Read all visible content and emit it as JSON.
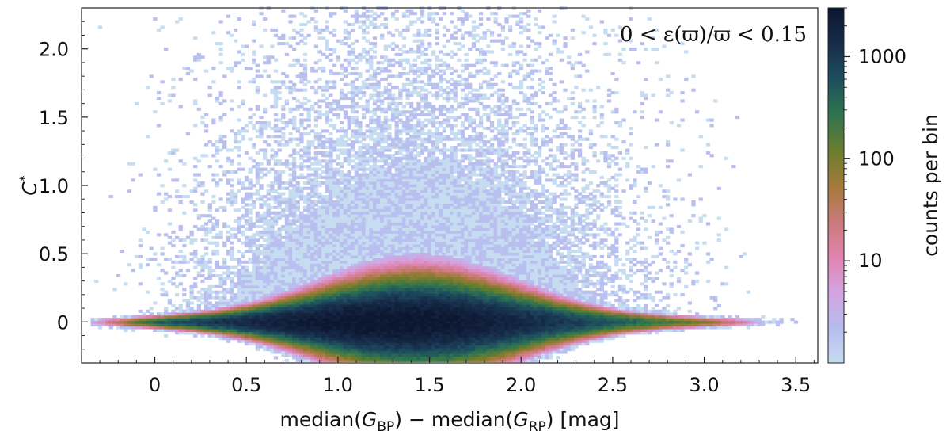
{
  "chart_data": {
    "type": "heatmap",
    "subtype": "2d-histogram",
    "xlabel": "median(G_BP) − median(G_RP)  [mag]",
    "xlabel_parts": {
      "pre": "median(",
      "g1": "G",
      "sub1": "BP",
      "mid": ") − median(",
      "g2": "G",
      "sub2": "RP",
      "post": ")  [mag]"
    },
    "ylabel": "C*",
    "ylabel_parts": {
      "base": "C",
      "sup": "*"
    },
    "xlim": [
      -0.4,
      3.62
    ],
    "ylim": [
      -0.3,
      2.3
    ],
    "x_ticks": [
      0,
      0.5,
      1.0,
      1.5,
      2.0,
      2.5,
      3.0,
      3.5
    ],
    "x_tick_labels": [
      "0",
      "0.5",
      "1.0",
      "1.5",
      "2.0",
      "2.5",
      "3.0",
      "3.5"
    ],
    "y_ticks": [
      0,
      0.5,
      1.0,
      1.5,
      2.0
    ],
    "y_tick_labels": [
      "0",
      "0.5",
      "1.0",
      "1.5",
      "2.0"
    ],
    "annotation": "0 < ε(ϖ)/ϖ < 0.15",
    "annotation_placement": "top-right",
    "colorbar": {
      "label": "counts per bin",
      "scale": "log",
      "range": [
        1,
        3000
      ],
      "ticks": [
        10,
        100,
        1000
      ],
      "tick_labels": [
        "10",
        "100",
        "1000"
      ],
      "colormap": [
        "#c6dcf0",
        "#b7bbee",
        "#d3a4e0",
        "#e083b0",
        "#c97a78",
        "#a37a3a",
        "#6a7d2e",
        "#2f7450",
        "#1d4e5e",
        "#172c4a",
        "#0d1630"
      ]
    },
    "density_model": {
      "ridge": [
        [
          -0.3,
          0.0
        ],
        [
          0.0,
          0.0
        ],
        [
          0.5,
          0.0
        ],
        [
          1.0,
          0.0
        ],
        [
          1.2,
          0.0
        ],
        [
          1.5,
          0.0
        ],
        [
          2.0,
          0.0
        ],
        [
          2.5,
          0.0
        ],
        [
          3.0,
          0.0
        ],
        [
          3.4,
          0.0
        ]
      ],
      "peak_x": 1.25,
      "peak_counts": 3000,
      "x_extent": [
        -0.35,
        3.55
      ],
      "scatter_top": 2.3
    },
    "grid": false
  }
}
